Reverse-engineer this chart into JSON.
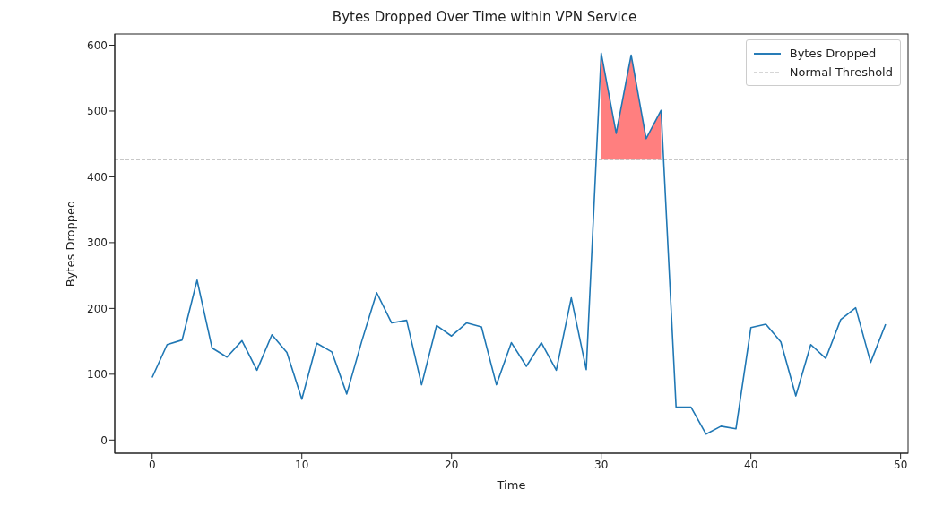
{
  "chart_data": {
    "type": "line",
    "title": "Bytes Dropped Over Time within VPN Service",
    "xlabel": "Time",
    "ylabel": "Bytes Dropped",
    "x": [
      0,
      1,
      2,
      3,
      4,
      5,
      6,
      7,
      8,
      9,
      10,
      11,
      12,
      13,
      14,
      15,
      16,
      17,
      18,
      19,
      20,
      21,
      22,
      23,
      24,
      25,
      26,
      27,
      28,
      29,
      30,
      31,
      32,
      33,
      34,
      35,
      36,
      37,
      38,
      39,
      40,
      41,
      42,
      43,
      44,
      45,
      46,
      47,
      48,
      49
    ],
    "series": [
      {
        "name": "Bytes Dropped",
        "color": "#1f77b4",
        "values": [
          95,
          145,
          152,
          243,
          140,
          126,
          151,
          106,
          160,
          133,
          62,
          147,
          134,
          70,
          150,
          224,
          178,
          182,
          84,
          174,
          158,
          178,
          172,
          84,
          148,
          112,
          148,
          106,
          216,
          107,
          588,
          466,
          585,
          458,
          501,
          50,
          50,
          9,
          21,
          17,
          171,
          176,
          149,
          67,
          145,
          124,
          183,
          201,
          118,
          176
        ]
      },
      {
        "type": "area",
        "color": "#ff7f7f",
        "x": [
          30,
          31,
          32,
          33,
          34
        ],
        "values": [
          588,
          466,
          585,
          458,
          501
        ]
      }
    ],
    "ref_lines": [
      {
        "axis": "y",
        "value": 426,
        "label": "Normal Threshold",
        "color": "#aaaaaa",
        "line_style": "dashed"
      }
    ],
    "xlim": [
      -2.5,
      50.5
    ],
    "xticks": [
      0,
      10,
      20,
      30,
      40,
      50
    ],
    "ylim": [
      -20,
      617
    ],
    "yticks": [
      0,
      100,
      200,
      300,
      400,
      500,
      600
    ],
    "legend": "top right"
  }
}
